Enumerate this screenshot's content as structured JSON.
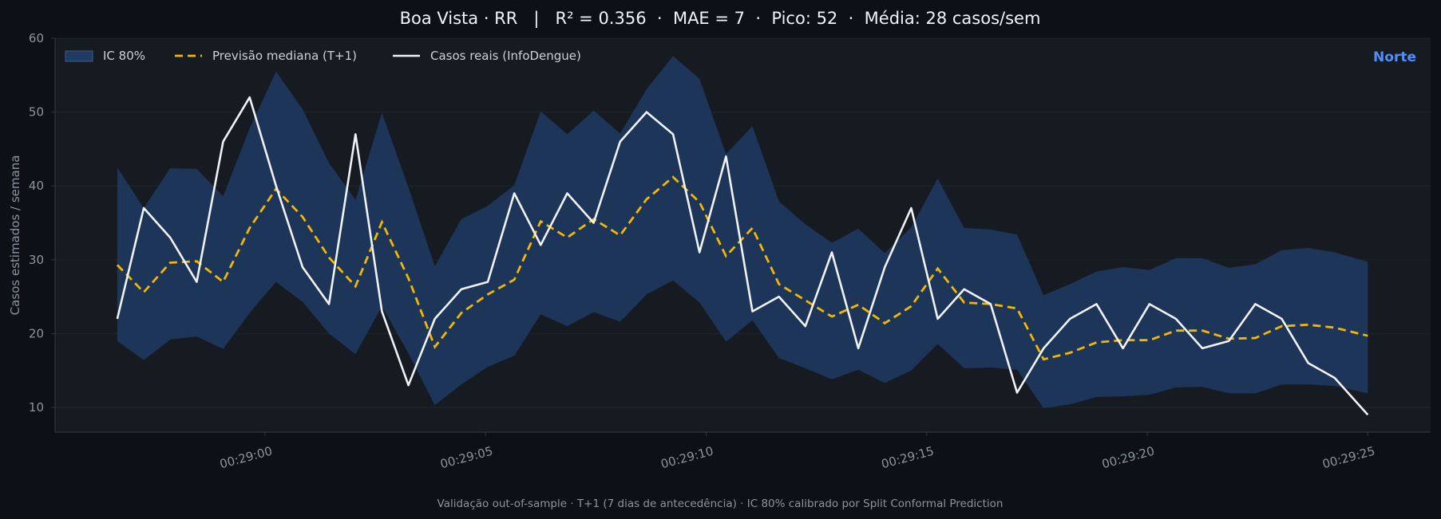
{
  "chart_data": {
    "type": "line",
    "title": "Boa Vista · RR   |   R² = 0.356  ·  MAE = 7  ·  Pico: 52  ·  Média: 28 casos/sem",
    "region_label": "Norte",
    "ylabel": "Casos estimados / semana",
    "xlabel": "",
    "footnote": "Validação out-of-sample · T+1 (7 dias de antecedência) · IC 80% calibrado por Split Conformal Prediction",
    "ylim": [
      4,
      60
    ],
    "y_ticks": [
      10,
      20,
      30,
      40,
      50,
      60
    ],
    "x_range": [
      -1.9,
      25.9
    ],
    "x_ticks": [
      {
        "value": 0,
        "label": "00:29:00"
      },
      {
        "value": 5,
        "label": "00:29:05"
      },
      {
        "value": 10,
        "label": "00:29:10"
      },
      {
        "value": 15,
        "label": "00:29:15"
      },
      {
        "value": 20,
        "label": "00:29:20"
      },
      {
        "value": 25,
        "label": "00:29:25"
      }
    ],
    "grid": true,
    "legend_position": "top-left",
    "legend": [
      {
        "kind": "band",
        "label": "IC 80%"
      },
      {
        "kind": "dashed",
        "label": "Previsão mediana (T+1)"
      },
      {
        "kind": "line",
        "label": "Casos reais (InfoDengue)"
      }
    ],
    "x": [
      -3.35,
      -2.75,
      -2.15,
      -1.55,
      -0.95,
      -0.35,
      0.25,
      0.85,
      1.45,
      2.05,
      2.65,
      3.25,
      3.85,
      4.45,
      5.05,
      5.65,
      6.25,
      6.85,
      7.45,
      8.05,
      8.65,
      9.25,
      9.85,
      10.45,
      11.05,
      11.65,
      12.25,
      12.85,
      13.45,
      14.05,
      14.65,
      15.25,
      15.85,
      16.45,
      17.05,
      17.65,
      18.25,
      18.85,
      19.45,
      20.05,
      20.65,
      21.25,
      21.85,
      22.45,
      23.05,
      23.65,
      24.25,
      25.0
    ],
    "actual": [
      22,
      37,
      33,
      27,
      46,
      52,
      40,
      29,
      24,
      47,
      23,
      13,
      22,
      26,
      27,
      39,
      32,
      39,
      35,
      46,
      50,
      47,
      31,
      44,
      23,
      25,
      21,
      31,
      18,
      29,
      37,
      22,
      26,
      24,
      12,
      18,
      22,
      24,
      18,
      24,
      22,
      18,
      19,
      24,
      22,
      16,
      14,
      9
    ],
    "median": [
      29.3,
      25.6,
      29.6,
      29.8,
      27.0,
      34.3,
      39.6,
      35.8,
      30.3,
      26.4,
      35.1,
      27.5,
      18.2,
      22.8,
      25.3,
      27.3,
      35.2,
      33.0,
      35.5,
      33.3,
      38.2,
      41.2,
      37.8,
      30.5,
      34.3,
      26.7,
      24.5,
      22.3,
      23.9,
      21.4,
      23.7,
      28.8,
      24.2,
      24.0,
      23.4,
      16.5,
      17.4,
      18.8,
      19.1,
      19.1,
      20.4,
      20.4,
      19.3,
      19.4,
      21.0,
      21.2,
      20.8,
      19.7
    ],
    "lower": [
      19.0,
      16.4,
      19.2,
      19.6,
      17.9,
      22.8,
      27.0,
      24.3,
      20.0,
      17.2,
      23.7,
      17.3,
      10.3,
      13.1,
      15.5,
      17.0,
      22.6,
      21.0,
      22.9,
      21.6,
      25.3,
      27.2,
      24.2,
      18.9,
      21.8,
      16.7,
      15.3,
      13.8,
      15.1,
      13.3,
      15.0,
      18.6,
      15.3,
      15.4,
      15.1,
      9.9,
      10.4,
      11.4,
      11.5,
      11.7,
      12.7,
      12.8,
      11.9,
      11.9,
      13.1,
      13.1,
      12.9,
      11.9
    ],
    "upper": [
      42.5,
      37.0,
      42.4,
      42.3,
      38.6,
      47.8,
      55.5,
      50.4,
      43.1,
      38.1,
      49.9,
      39.8,
      29.1,
      35.5,
      37.3,
      40.1,
      50.1,
      47.0,
      50.2,
      47.1,
      53.1,
      57.6,
      54.5,
      44.3,
      48.1,
      37.9,
      34.8,
      32.3,
      34.2,
      30.9,
      34.4,
      41.0,
      34.3,
      34.1,
      33.4,
      25.2,
      26.7,
      28.4,
      29.0,
      28.6,
      30.2,
      30.2,
      28.9,
      29.4,
      31.3,
      31.6,
      31.0,
      29.7
    ],
    "colors": {
      "background": "#0d1117",
      "plot_background": "#161b22",
      "band": "#1f3a63",
      "median": "#f2b705",
      "actual": "#f0f3f6",
      "region": "#4f8ff7",
      "grid": "#21262d",
      "axis": "#30363d"
    }
  }
}
